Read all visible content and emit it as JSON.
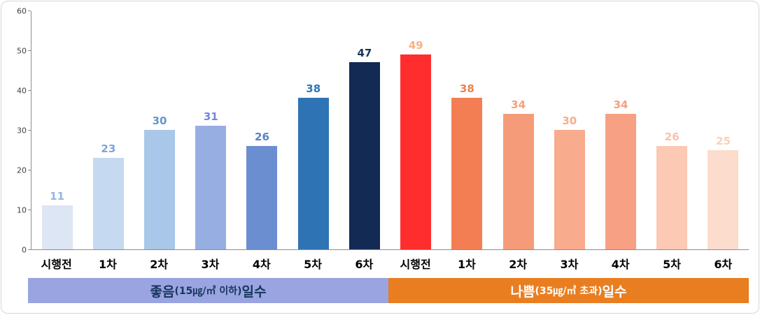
{
  "chart_data": {
    "type": "bar",
    "title": "",
    "xlabel": "",
    "ylabel": "",
    "ylim": [
      0,
      60
    ],
    "yticks": [
      0,
      10,
      20,
      30,
      40,
      50,
      60
    ],
    "grid": false,
    "legend_position": "bottom",
    "categories": [
      "시행전",
      "1차",
      "2차",
      "3차",
      "4차",
      "5차",
      "6차",
      "시행전",
      "1차",
      "2차",
      "3차",
      "4차",
      "5차",
      "6차"
    ],
    "series": [
      {
        "name": "좋음(15㎍/㎥ 이하) 일수",
        "values": [
          11,
          23,
          30,
          31,
          26,
          38,
          47
        ]
      },
      {
        "name": "나쁨(35㎍/㎥ 초과) 일수",
        "values": [
          49,
          38,
          34,
          30,
          34,
          26,
          25
        ]
      }
    ],
    "bars": [
      {
        "category": "시행전",
        "value": 11,
        "color": "#dce6f5",
        "label_color": "#93b5e1"
      },
      {
        "category": "1차",
        "value": 23,
        "color": "#c5d9f1",
        "label_color": "#7da5d8"
      },
      {
        "category": "2차",
        "value": 30,
        "color": "#a9c7e8",
        "label_color": "#6495cd"
      },
      {
        "category": "3차",
        "value": 31,
        "color": "#97aee3",
        "label_color": "#7289d6"
      },
      {
        "category": "4차",
        "value": 26,
        "color": "#6b8ed1",
        "label_color": "#5b80c7"
      },
      {
        "category": "5차",
        "value": 38,
        "color": "#2e74b5",
        "label_color": "#2e74b5"
      },
      {
        "category": "6차",
        "value": 47,
        "color": "#122a54",
        "label_color": "#16365c"
      },
      {
        "category": "시행전",
        "value": 49,
        "color": "#ff2d2d",
        "label_color": "#f9b183"
      },
      {
        "category": "1차",
        "value": 38,
        "color": "#f47e53",
        "label_color": "#ef8050"
      },
      {
        "category": "2차",
        "value": 34,
        "color": "#f69b79",
        "label_color": "#f5a07c"
      },
      {
        "category": "3차",
        "value": 30,
        "color": "#f8ab8d",
        "label_color": "#f7ad8d"
      },
      {
        "category": "4차",
        "value": 34,
        "color": "#f7a084",
        "label_color": "#f5a080"
      },
      {
        "category": "5차",
        "value": 26,
        "color": "#fbc9b4",
        "label_color": "#f9c2a6"
      },
      {
        "category": "6차",
        "value": 25,
        "color": "#fcdccc",
        "label_color": "#fbd0b5"
      }
    ]
  },
  "legend": {
    "good": {
      "prefix": "좋음",
      "detail": "(15㎍/㎥ 이하)",
      "suffix": " 일수",
      "bg": "#99a4e1",
      "text_color": "#17365d"
    },
    "bad": {
      "prefix": "나쁨",
      "detail": "(35㎍/㎥ 초과)",
      "suffix": " 일수",
      "bg": "#e97e21",
      "text_color": "#ffffff"
    }
  }
}
